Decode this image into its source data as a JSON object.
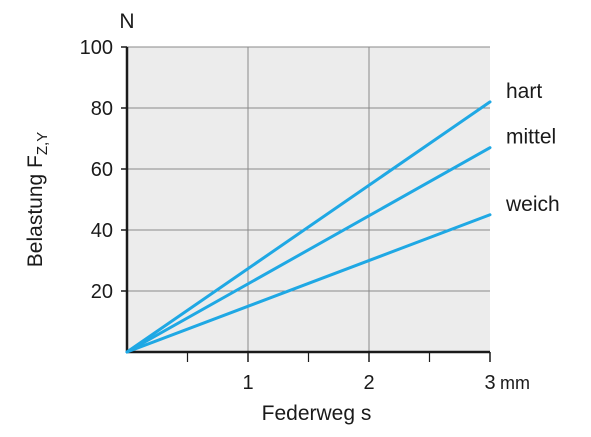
{
  "chart_data": {
    "type": "line",
    "y_unit": "N",
    "ylabel_main": "Belastung F",
    "ylabel_sub": "Z,Y",
    "xlabel": "Federweg s",
    "x_unit": "mm",
    "xlim": [
      0,
      3
    ],
    "ylim": [
      0,
      100
    ],
    "x_ticks": [
      1,
      2,
      3
    ],
    "y_ticks": [
      20,
      40,
      60,
      80,
      100
    ],
    "x_minor_ticks": [
      0.5,
      1.5,
      2.5
    ],
    "grid": true,
    "series": [
      {
        "name": "hart",
        "x": [
          0,
          3
        ],
        "y": [
          0,
          82
        ]
      },
      {
        "name": "mittel",
        "x": [
          0,
          3
        ],
        "y": [
          0,
          67
        ]
      },
      {
        "name": "weich",
        "x": [
          0,
          3
        ],
        "y": [
          0,
          45
        ]
      }
    ],
    "colors": {
      "line": "#1fa8e4",
      "plot_background": "#ececec",
      "grid": "#8a8a8a",
      "axis": "#1a1a1a"
    }
  }
}
